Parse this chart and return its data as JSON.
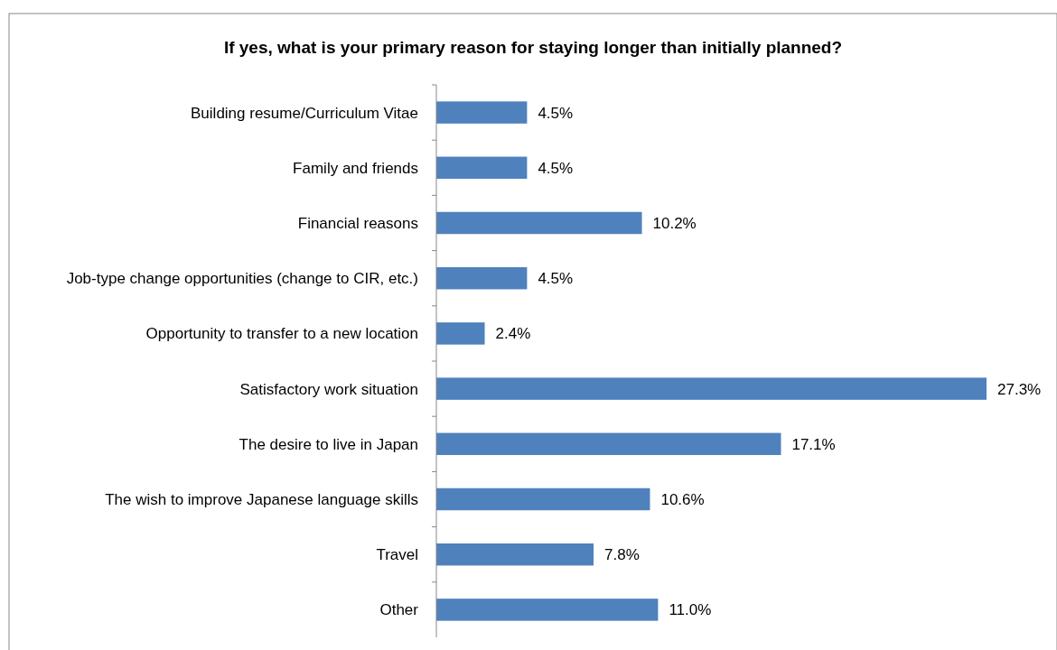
{
  "chart_data": {
    "type": "bar",
    "orientation": "horizontal",
    "title": "If yes, what is your primary reason for staying longer than initially planned?",
    "categories": [
      "Building resume/Curriculum Vitae",
      "Family and friends",
      "Financial reasons",
      "Job-type change opportunities (change to CIR, etc.)",
      "Opportunity to transfer to a new location",
      "Satisfactory work situation",
      "The desire to live in Japan",
      "The wish to improve Japanese language skills",
      "Travel",
      "Other"
    ],
    "values": [
      4.5,
      4.5,
      10.2,
      4.5,
      2.4,
      27.3,
      17.1,
      10.6,
      7.8,
      11.0
    ],
    "value_labels": [
      "4.5%",
      "4.5%",
      "10.2%",
      "4.5%",
      "2.4%",
      "27.3%",
      "17.1%",
      "10.6%",
      "7.8%",
      "11.0%"
    ],
    "color": "#4f81bd"
  }
}
